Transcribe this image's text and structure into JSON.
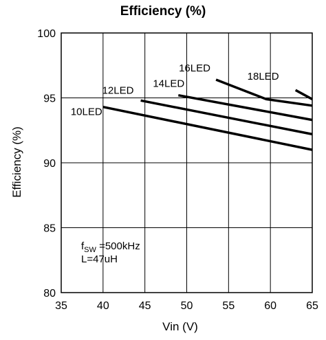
{
  "chart_data": {
    "type": "line",
    "title": "Efficiency (%)",
    "xlabel": "Vin (V)",
    "ylabel": "Efficiency (%)",
    "xlim": [
      35,
      65
    ],
    "ylim": [
      80,
      100
    ],
    "xticks": [
      35,
      40,
      45,
      50,
      55,
      60,
      65
    ],
    "yticks": [
      80,
      85,
      90,
      95,
      100
    ],
    "grid": true,
    "series": [
      {
        "name": "10LED",
        "x": [
          40,
          65
        ],
        "y": [
          94.3,
          91.0
        ]
      },
      {
        "name": "12LED",
        "x": [
          44.5,
          65
        ],
        "y": [
          94.8,
          92.2
        ]
      },
      {
        "name": "14LED",
        "x": [
          49,
          65
        ],
        "y": [
          95.2,
          93.3
        ]
      },
      {
        "name": "16LED",
        "x": [
          53.5,
          59.5,
          65
        ],
        "y": [
          96.4,
          94.9,
          94.4
        ]
      },
      {
        "name": "18LED",
        "x": [
          63,
          65
        ],
        "y": [
          95.6,
          94.9
        ]
      }
    ],
    "annotation": {
      "fsw_prefix": "f",
      "fsw_sub": "SW",
      "fsw_value": " =500kHz",
      "inductance": "L=47uH"
    }
  }
}
